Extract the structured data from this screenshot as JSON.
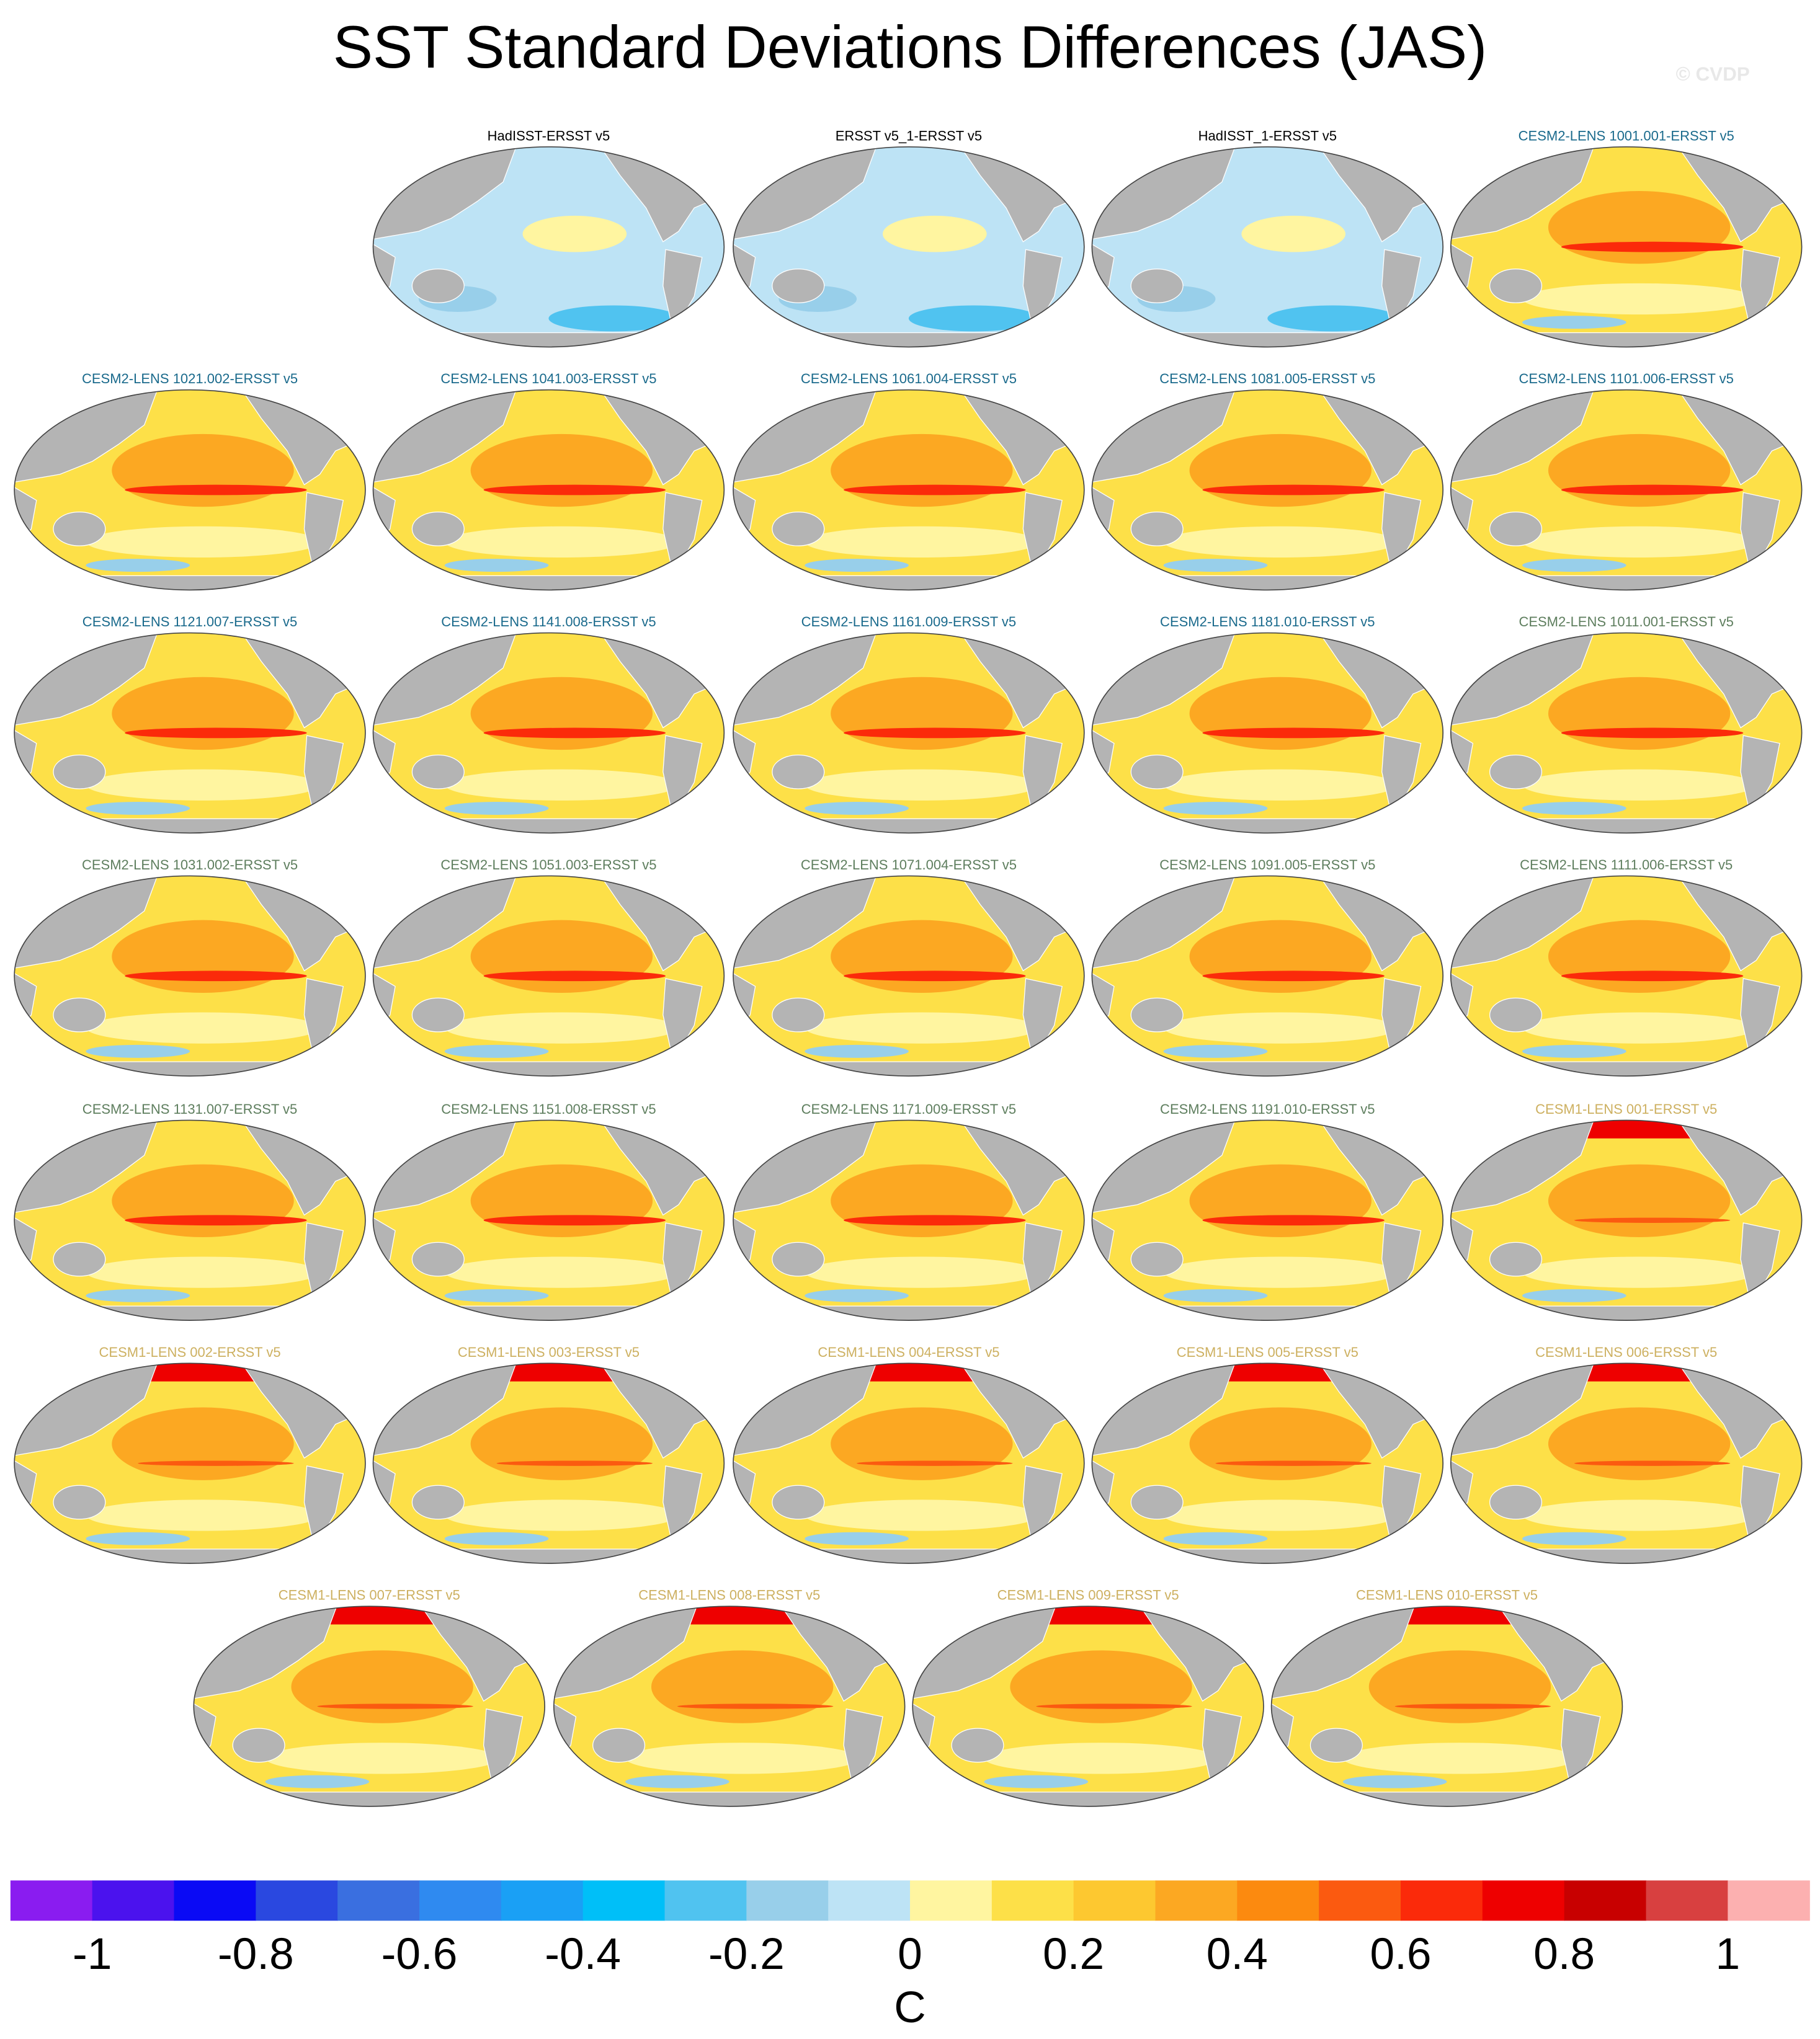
{
  "title": "SST Standard Deviations Differences (JAS)",
  "watermark": "© CVDP",
  "panels": [
    {
      "title": "HadISST-ERSST v5",
      "color": "#000000"
    },
    {
      "title": "ERSST v5_1-ERSST v5",
      "color": "#000000"
    },
    {
      "title": "HadISST_1-ERSST v5",
      "color": "#000000"
    },
    {
      "title": "CESM2-LENS 1001.001-ERSST v5",
      "color": "#1a6a8c"
    },
    {
      "title": "CESM2-LENS 1021.002-ERSST v5",
      "color": "#1a6a8c"
    },
    {
      "title": "CESM2-LENS 1041.003-ERSST v5",
      "color": "#1a6a8c"
    },
    {
      "title": "CESM2-LENS 1061.004-ERSST v5",
      "color": "#1a6a8c"
    },
    {
      "title": "CESM2-LENS 1081.005-ERSST v5",
      "color": "#1a6a8c"
    },
    {
      "title": "CESM2-LENS 1101.006-ERSST v5",
      "color": "#1a6a8c"
    },
    {
      "title": "CESM2-LENS 1121.007-ERSST v5",
      "color": "#1a6a8c"
    },
    {
      "title": "CESM2-LENS 1141.008-ERSST v5",
      "color": "#1a6a8c"
    },
    {
      "title": "CESM2-LENS 1161.009-ERSST v5",
      "color": "#1a6a8c"
    },
    {
      "title": "CESM2-LENS 1181.010-ERSST v5",
      "color": "#1a6a8c"
    },
    {
      "title": "CESM2-LENS 1011.001-ERSST v5",
      "color": "#5e7e5e"
    },
    {
      "title": "CESM2-LENS 1031.002-ERSST v5",
      "color": "#5e7e5e"
    },
    {
      "title": "CESM2-LENS 1051.003-ERSST v5",
      "color": "#5e7e5e"
    },
    {
      "title": "CESM2-LENS 1071.004-ERSST v5",
      "color": "#5e7e5e"
    },
    {
      "title": "CESM2-LENS 1091.005-ERSST v5",
      "color": "#5e7e5e"
    },
    {
      "title": "CESM2-LENS 1111.006-ERSST v5",
      "color": "#5e7e5e"
    },
    {
      "title": "CESM2-LENS 1131.007-ERSST v5",
      "color": "#5e7e5e"
    },
    {
      "title": "CESM2-LENS 1151.008-ERSST v5",
      "color": "#5e7e5e"
    },
    {
      "title": "CESM2-LENS 1171.009-ERSST v5",
      "color": "#5e7e5e"
    },
    {
      "title": "CESM2-LENS 1191.010-ERSST v5",
      "color": "#5e7e5e"
    },
    {
      "title": "CESM1-LENS 001-ERSST v5",
      "color": "#cdb060"
    },
    {
      "title": "CESM1-LENS 002-ERSST v5",
      "color": "#cdb060"
    },
    {
      "title": "CESM1-LENS 003-ERSST v5",
      "color": "#cdb060"
    },
    {
      "title": "CESM1-LENS 004-ERSST v5",
      "color": "#cdb060"
    },
    {
      "title": "CESM1-LENS 005-ERSST v5",
      "color": "#cdb060"
    },
    {
      "title": "CESM1-LENS 006-ERSST v5",
      "color": "#cdb060"
    },
    {
      "title": "CESM1-LENS 007-ERSST v5",
      "color": "#cdb060"
    },
    {
      "title": "CESM1-LENS 008-ERSST v5",
      "color": "#cdb060"
    },
    {
      "title": "CESM1-LENS 009-ERSST v5",
      "color": "#cdb060"
    },
    {
      "title": "CESM1-LENS 010-ERSST v5",
      "color": "#cdb060"
    }
  ],
  "colorbar": {
    "label": "C",
    "clim": [
      -1.1,
      1.1
    ],
    "ticks": [
      -1,
      -0.8,
      -0.6,
      -0.4,
      -0.2,
      0,
      0.2,
      0.4,
      0.6,
      0.8,
      1
    ],
    "colors": [
      "#8a1cf0",
      "#4b12ee",
      "#0a0af5",
      "#2a48e0",
      "#3a6fe0",
      "#2f8af0",
      "#1aa0f5",
      "#00bff8",
      "#50c3f0",
      "#98cfea",
      "#bde3f5",
      "#fff5a0",
      "#fde048",
      "#fdc830",
      "#fca822",
      "#fc8a0f",
      "#fb5a10",
      "#fb2a0a",
      "#ee0000",
      "#c80000",
      "#d84040",
      "#fcb0b0"
    ]
  }
}
